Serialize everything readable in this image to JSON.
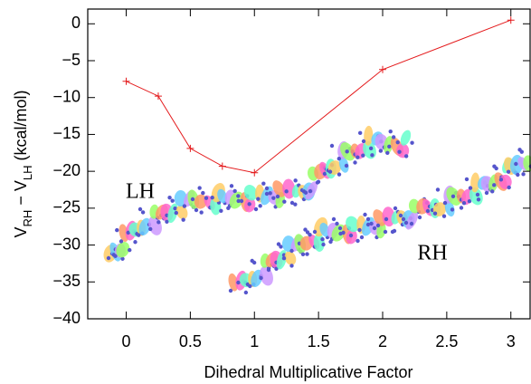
{
  "chart_data": {
    "type": "line",
    "xlabel": "Dihedral Multiplicative Factor",
    "ylabel": [
      "V",
      "RH",
      " − V",
      "LH",
      " (kcal/mol)"
    ],
    "x": [
      0,
      0.25,
      0.5,
      0.75,
      1,
      2,
      3
    ],
    "series": [
      {
        "color": "#e41a1c",
        "values": [
          -7.8,
          -9.8,
          -16.9,
          -19.3,
          -20.2,
          -6.2,
          0.5
        ]
      }
    ],
    "xlim": [
      -0.3,
      3.15
    ],
    "ylim": [
      -40,
      2
    ],
    "xticks": [
      0,
      0.5,
      1,
      1.5,
      2,
      2.5,
      3
    ],
    "yticks": [
      {
        "value": -40,
        "label": "−40"
      },
      {
        "value": -35,
        "label": "−35"
      },
      {
        "value": -30,
        "label": "−30"
      },
      {
        "value": -25,
        "label": "−25"
      },
      {
        "value": -20,
        "label": "−20"
      },
      {
        "value": -15,
        "label": "−15"
      },
      {
        "value": -10,
        "label": "−10"
      },
      {
        "value": -5,
        "label": "−5"
      },
      0
    ],
    "annotations": [
      "LH",
      "RH"
    ]
  }
}
